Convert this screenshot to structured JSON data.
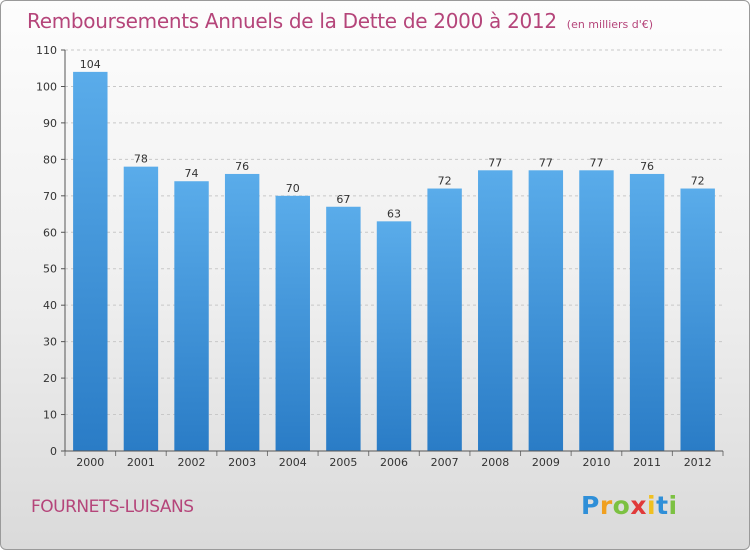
{
  "header": {
    "title": "Remboursements Annuels de la Dette de 2000 à 2012",
    "unit": "(en milliers d'€)"
  },
  "footer": {
    "commune": "FOURNETS-LUISANS",
    "logo_letters": [
      "P",
      "r",
      "o",
      "x",
      "i",
      "t",
      "i"
    ]
  },
  "chart_data": {
    "type": "bar",
    "title": "Remboursements Annuels de la Dette de 2000 à 2012",
    "subtitle": "(en milliers d'€)",
    "categories": [
      "2000",
      "2001",
      "2002",
      "2003",
      "2004",
      "2005",
      "2006",
      "2007",
      "2008",
      "2009",
      "2010",
      "2011",
      "2012"
    ],
    "values": [
      104,
      78,
      74,
      76,
      70,
      67,
      63,
      72,
      77,
      77,
      77,
      76,
      72
    ],
    "ylim": [
      0,
      110
    ],
    "yticks": [
      0,
      10,
      20,
      30,
      40,
      50,
      60,
      70,
      80,
      90,
      100,
      110
    ],
    "grid": true,
    "colors": {
      "bar_top": "#5aacea",
      "bar_bottom": "#2a7cc6",
      "grid": "#c8c8c8"
    }
  }
}
